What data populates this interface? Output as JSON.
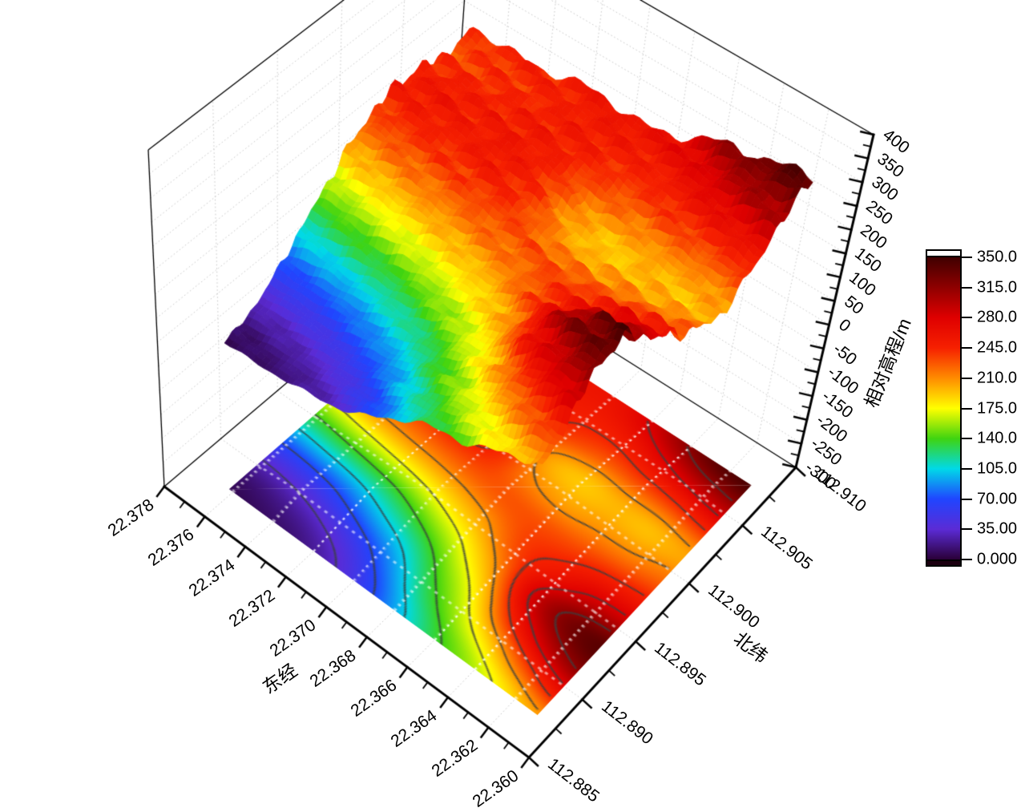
{
  "page": {
    "background": "#ffffff"
  },
  "chart": {
    "type": "3d-surface-with-contour-projection",
    "x_axis": {
      "title": "东经",
      "tick_labels": [
        "22.378",
        "22.376",
        "22.374",
        "22.372",
        "22.370",
        "22.368",
        "22.366",
        "22.364",
        "22.362",
        "22.360"
      ]
    },
    "y_axis": {
      "title": "北纬",
      "tick_labels": [
        "112.885",
        "112.890",
        "112.895",
        "112.900",
        "112.905",
        "112.910"
      ]
    },
    "z_axis": {
      "title": "相对高程/m",
      "tick_labels": [
        "400",
        "350",
        "300",
        "250",
        "200",
        "150",
        "100",
        "50",
        "0",
        "-50",
        "-100",
        "-150",
        "-200",
        "-250",
        "-300"
      ]
    },
    "colorbar": {
      "tick_labels": [
        "350.0",
        "315.0",
        "280.0",
        "245.0",
        "210.0",
        "175.0",
        "140.0",
        "105.0",
        "70.00",
        "35.00",
        "0.000"
      ],
      "range_min": 0,
      "range_max": 350,
      "above_color": "#ffffff",
      "below_color": "#1c0010",
      "stops": [
        {
          "v": 0,
          "c": "#2a0038"
        },
        {
          "v": 35,
          "c": "#5b2bd5"
        },
        {
          "v": 70,
          "c": "#2045ff"
        },
        {
          "v": 105,
          "c": "#00d9e8"
        },
        {
          "v": 140,
          "c": "#3fd410"
        },
        {
          "v": 175,
          "c": "#ffff00"
        },
        {
          "v": 210,
          "c": "#ff8c00"
        },
        {
          "v": 245,
          "c": "#f62000"
        },
        {
          "v": 280,
          "c": "#df0000"
        },
        {
          "v": 315,
          "c": "#8f0000"
        },
        {
          "v": 350,
          "c": "#400000"
        }
      ]
    }
  },
  "chart_data": {
    "type": "surface",
    "x_name": "东经",
    "x_values": [
      22.36,
      22.362,
      22.364,
      22.366,
      22.368,
      22.37,
      22.372,
      22.374,
      22.376,
      22.378
    ],
    "y_name": "北纬",
    "y_values": [
      112.885,
      112.8875,
      112.89,
      112.8925,
      112.895,
      112.8975,
      112.9,
      112.9025,
      112.905,
      112.9075,
      112.91
    ],
    "z_name": "相对高程/m",
    "z_axis_range": [
      -300,
      400
    ],
    "color_scale": {
      "min": 0,
      "max": 350,
      "interval": 35
    },
    "contour_levels": [
      35,
      70,
      105,
      140,
      175,
      210,
      245,
      280,
      315
    ],
    "projection_plane_z": -300,
    "z_grid_rows_by_x": [
      [
        205,
        262,
        318,
        338,
        292,
        250,
        218,
        203,
        246,
        302,
        345
      ],
      [
        182,
        232,
        292,
        322,
        284,
        244,
        210,
        196,
        238,
        292,
        336
      ],
      [
        158,
        193,
        246,
        282,
        256,
        234,
        208,
        198,
        234,
        274,
        312
      ],
      [
        134,
        158,
        184,
        214,
        234,
        230,
        204,
        193,
        228,
        256,
        282
      ],
      [
        100,
        124,
        148,
        176,
        206,
        228,
        214,
        204,
        234,
        250,
        262
      ],
      [
        62,
        84,
        114,
        152,
        190,
        224,
        240,
        242,
        248,
        252,
        258
      ],
      [
        32,
        54,
        92,
        132,
        178,
        218,
        246,
        255,
        252,
        248,
        252
      ],
      [
        16,
        36,
        72,
        118,
        168,
        212,
        240,
        252,
        248,
        243,
        248
      ],
      [
        10,
        26,
        60,
        108,
        158,
        205,
        240,
        254,
        250,
        238,
        243
      ],
      [
        6,
        20,
        54,
        100,
        148,
        196,
        233,
        250,
        246,
        232,
        238
      ]
    ]
  }
}
